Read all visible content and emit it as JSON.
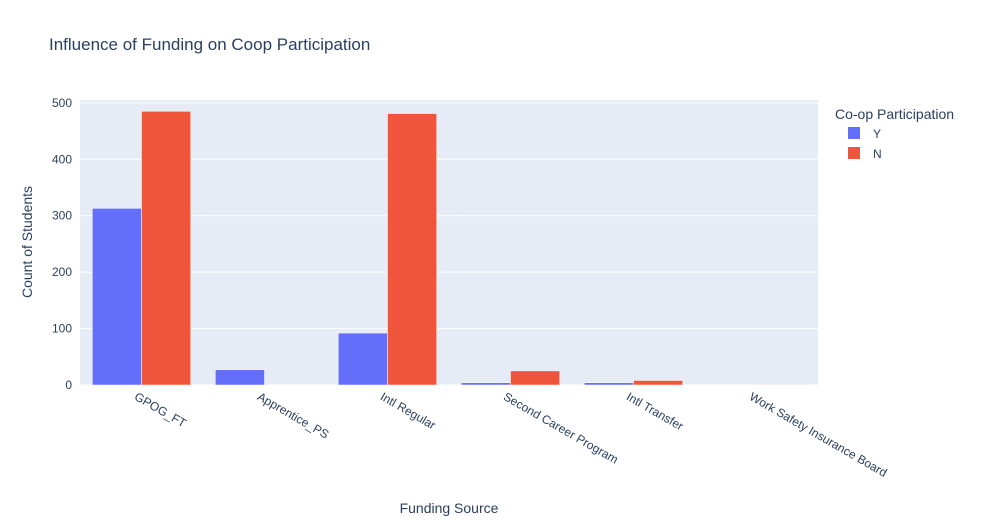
{
  "chart_data": {
    "type": "bar",
    "title": "Influence of Funding on Coop Participation",
    "xlabel": "Funding Source",
    "ylabel": "Count of Students",
    "categories": [
      "GPOG_FT",
      "Apprentice_PS",
      "Intl Regular",
      "Second Career Program",
      "Intl Transfer",
      "Work Safety Insurance Board"
    ],
    "series": [
      {
        "name": "Y",
        "values": [
          313,
          27,
          92,
          4,
          4,
          0
        ],
        "color": "#636efa"
      },
      {
        "name": "N",
        "values": [
          485,
          0,
          481,
          25,
          8,
          1
        ],
        "color": "#ef553b"
      }
    ],
    "ylim": [
      0,
      505
    ],
    "yticks": [
      0,
      100,
      200,
      300,
      400,
      500
    ],
    "grid": true,
    "barmode": "group",
    "plot_background": "#e5ecf6",
    "legend": {
      "title": "Co-op Participation",
      "position": "top-right"
    }
  }
}
